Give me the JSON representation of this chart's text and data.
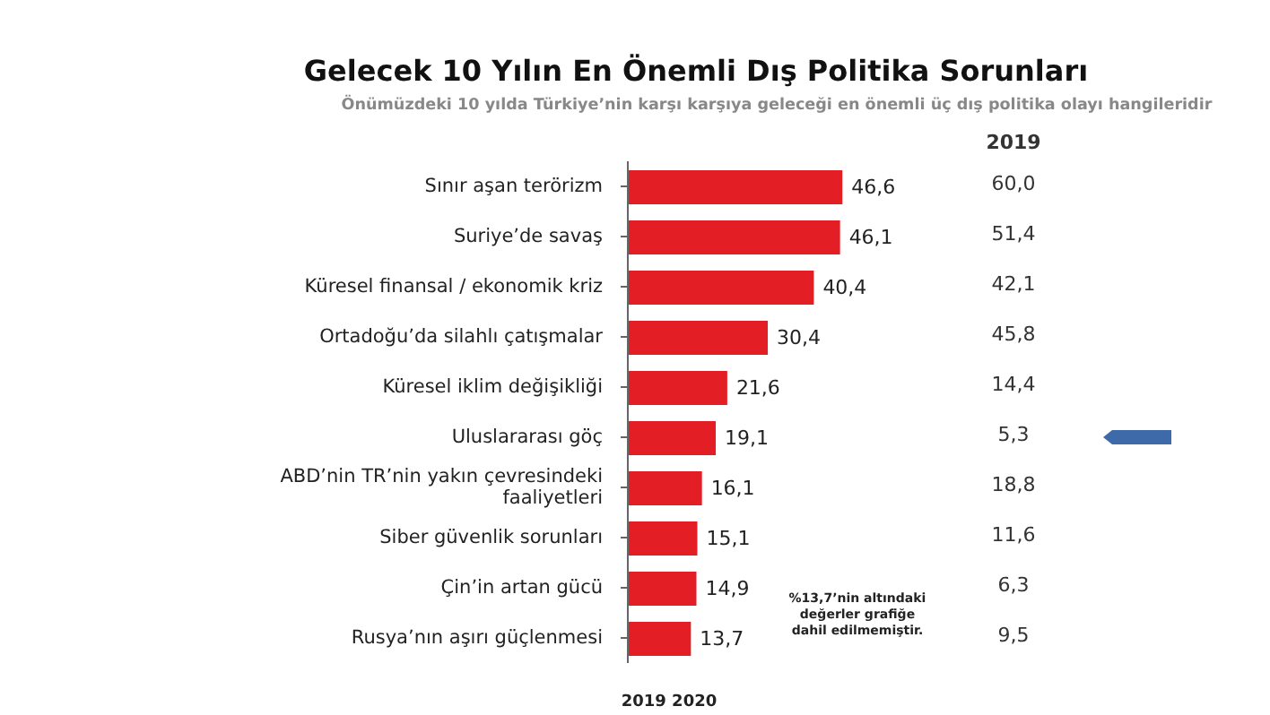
{
  "chart_data": {
    "type": "bar",
    "orientation": "horizontal",
    "title": "Gelecek 10 Yılın En Önemli Dış Politika Sorunları",
    "subtitle": "Önümüzdeki 10 yılda Türkiye’nin karşı karşıya geleceği en önemli üç dış politika olayı hangileridir",
    "categories": [
      "Sınır aşan terörizm",
      "Suriye’de savaş",
      "Küresel finansal / ekonomik kriz",
      "Ortadoğu’da silahlı çatışmalar",
      "Küresel iklim değişikliği",
      "Uluslararası göç",
      "ABD’nin TR’nin yakın çevresindeki faaliyetleri",
      "Siber güvenlik sorunları",
      "Çin’in artan gücü",
      "Rusya’nın aşırı güçlenmesi"
    ],
    "values": [
      46.6,
      46.1,
      40.4,
      30.4,
      21.6,
      19.1,
      16.1,
      15.1,
      14.9,
      13.7
    ],
    "value_labels": [
      "46,6",
      "46,1",
      "40,4",
      "30,4",
      "21,6",
      "19,1",
      "16,1",
      "15,1",
      "14,9",
      "13,7"
    ],
    "color": "#e31e24",
    "tick_labels": "y",
    "annotations": [
      "2019",
      "60,0",
      "51,4",
      "42,1",
      "45,8",
      "14,4",
      "5,3",
      "18,8",
      "11,6",
      "6,3",
      "9,5",
      "%13,7’nin altındaki değerler grafiğe dahil edilmemiştir.",
      "2019  2020"
    ]
  }
}
